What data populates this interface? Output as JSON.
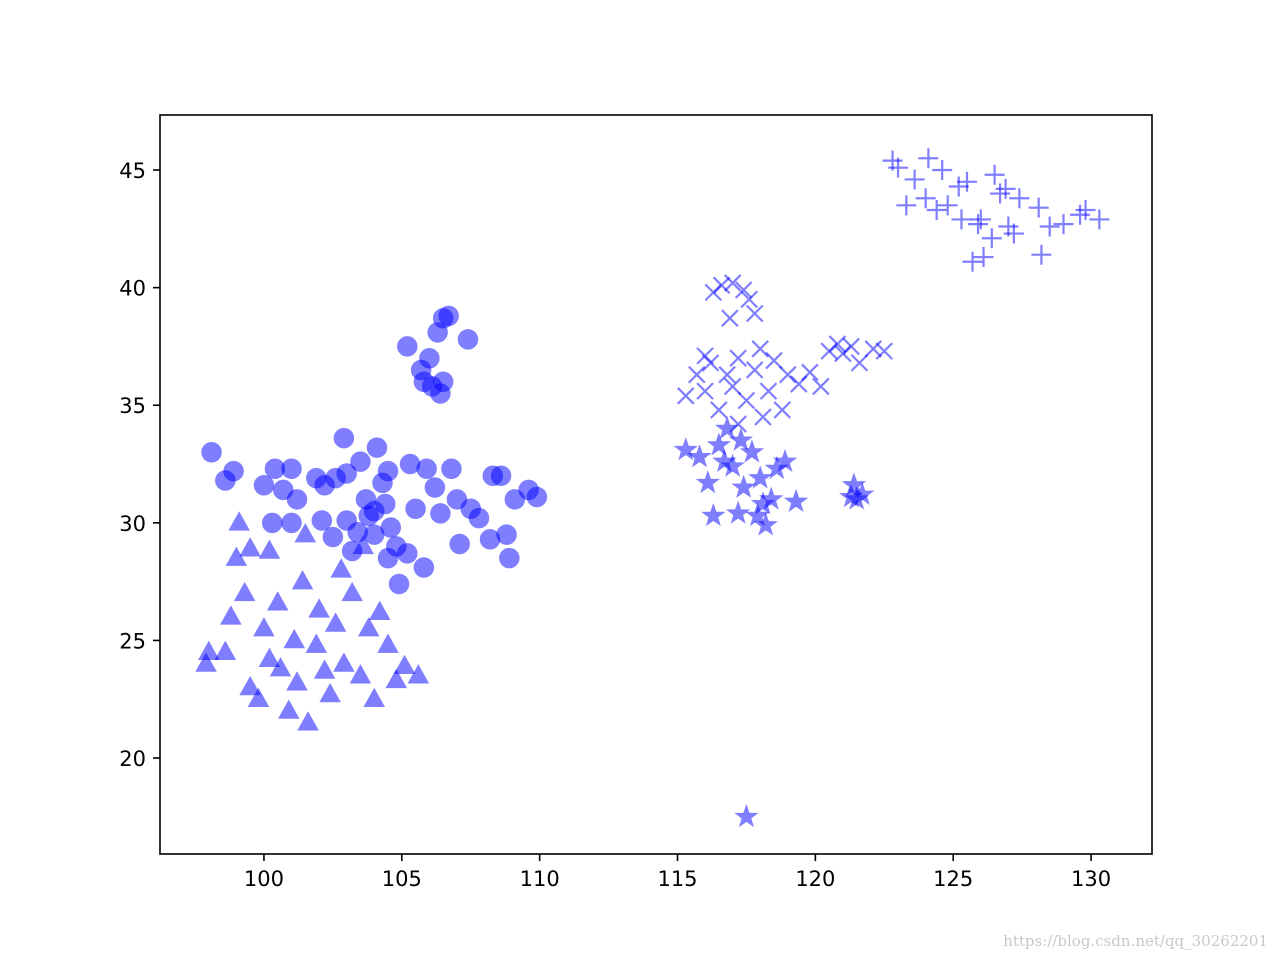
{
  "chart_data": {
    "type": "scatter",
    "xlim": [
      96.23,
      132.21
    ],
    "ylim": [
      15.92,
      47.34
    ],
    "xticks": [
      100,
      105,
      110,
      115,
      120,
      125,
      130
    ],
    "yticks": [
      20,
      25,
      30,
      35,
      40,
      45
    ],
    "alpha": 0.5,
    "watermark": "https://blog.csdn.net/qq_30262201",
    "series": [
      {
        "color": "#0000ff",
        "marker": "o",
        "x": [
          98.1,
          98.6,
          98.9,
          100,
          100.4,
          100.7,
          101,
          101.2,
          100.3,
          101,
          101.9,
          102.2,
          102.6,
          102.1,
          102.5,
          102.9,
          103,
          103,
          103.4,
          103.5,
          103.7,
          103.8,
          104,
          104.1,
          104.3,
          104.4,
          104.5,
          104.5,
          104.8,
          104.9,
          105.2,
          105.3,
          105.5,
          105.8,
          105.9,
          106.2,
          106.4,
          106.8,
          107,
          107.1,
          107.5,
          107.8,
          108.2,
          108.3,
          108.6,
          108.8,
          108.9,
          109.1,
          109.6,
          109.9,
          105.2,
          105.7,
          105.8,
          106,
          106.1,
          106.3,
          106.4,
          106.5,
          106.7,
          107.4,
          106.5,
          104,
          104.6,
          103.2
        ],
        "values": [
          33,
          31.8,
          32.2,
          31.6,
          32.3,
          31.4,
          32.3,
          31,
          30,
          30,
          31.9,
          31.6,
          31.9,
          30.1,
          29.4,
          33.6,
          32.1,
          30.1,
          29.6,
          32.6,
          31,
          30.3,
          29.5,
          33.2,
          31.7,
          30.8,
          32.2,
          28.5,
          29,
          27.4,
          28.7,
          32.5,
          30.6,
          28.1,
          32.3,
          31.5,
          30.4,
          32.3,
          31,
          29.1,
          30.6,
          30.2,
          29.3,
          32,
          32,
          29.5,
          28.5,
          31,
          31.4,
          31.1,
          37.5,
          36.5,
          36,
          37,
          35.8,
          38.1,
          35.5,
          38.7,
          38.8,
          37.8,
          36,
          30.5,
          29.8,
          28.8
        ]
      },
      {
        "color": "#0000ff",
        "marker": "^",
        "x": [
          97.9,
          98,
          98.6,
          98.8,
          99.1,
          99,
          99.3,
          99.5,
          99.8,
          100,
          100.2,
          100.5,
          100.9,
          101.1,
          101.2,
          101.4,
          101.6,
          101.9,
          102,
          102.4,
          102.6,
          102.9,
          103.2,
          103.5,
          103.8,
          104,
          104.2,
          104.5,
          104.8,
          105.1,
          105.6,
          101.5,
          102.8,
          103.6,
          99.5,
          100.2,
          102.2,
          100.6
        ],
        "values": [
          24,
          24.5,
          24.5,
          26,
          30,
          28.5,
          27,
          23,
          22.5,
          25.5,
          24.2,
          26.6,
          22,
          25,
          23.2,
          27.5,
          21.5,
          24.8,
          26.3,
          22.7,
          25.7,
          24,
          27,
          23.5,
          25.5,
          22.5,
          26.2,
          24.8,
          23.3,
          23.9,
          23.5,
          29.5,
          28,
          29,
          28.9,
          28.8,
          23.7,
          23.8
        ]
      },
      {
        "color": "#0000ff",
        "marker": "x",
        "x": [
          115.3,
          115.7,
          116,
          116.2,
          116.3,
          116.6,
          116.9,
          117,
          117.4,
          117.6,
          117.8,
          116.8,
          117,
          117.2,
          117.5,
          117.8,
          118,
          118.3,
          118.5,
          118.8,
          119,
          119.4,
          119.8,
          120.2,
          120.5,
          120.8,
          121,
          121.3,
          121.6,
          122.1,
          122.5,
          116.5,
          116,
          117.2,
          118.1
        ],
        "values": [
          35.4,
          36.3,
          35.6,
          36.8,
          39.8,
          40.1,
          38.7,
          40.2,
          39.9,
          39.5,
          38.9,
          36.3,
          35.8,
          37,
          35.2,
          36.5,
          37.4,
          35.6,
          36.9,
          34.8,
          36.3,
          35.9,
          36.4,
          35.8,
          37.3,
          37.6,
          37.2,
          37.5,
          36.8,
          37.4,
          37.3,
          34.8,
          37.1,
          34.2,
          34.5
        ]
      },
      {
        "color": "#0000ff",
        "marker": "*",
        "x": [
          115.3,
          115.8,
          116.1,
          116.3,
          116.5,
          116.8,
          117,
          117.2,
          117.4,
          117.5,
          117.7,
          117.9,
          118,
          118.2,
          118.4,
          118.6,
          118.9,
          119.3,
          121.3,
          121.4,
          121.5,
          121.7,
          116.7,
          117.3,
          118.1
        ],
        "values": [
          33.1,
          32.8,
          31.7,
          30.3,
          33.3,
          34,
          32.4,
          30.4,
          31.5,
          17.5,
          33,
          30.3,
          31.9,
          29.9,
          31,
          32.3,
          32.6,
          30.9,
          31.1,
          31.6,
          31,
          31.2,
          32.6,
          33.5,
          30.8
        ]
      },
      {
        "color": "#0000ff",
        "marker": "+",
        "x": [
          122.8,
          123,
          123.3,
          123.6,
          124,
          124.1,
          124.4,
          124.6,
          124.8,
          125.2,
          125.3,
          125.5,
          125.7,
          125.9,
          126.1,
          126.4,
          126.5,
          126.7,
          126.9,
          127,
          127.2,
          127.4,
          128.1,
          128.2,
          128.5,
          129,
          129.6,
          129.8,
          130.3,
          126
        ],
        "values": [
          45.4,
          45.1,
          43.5,
          44.6,
          43.8,
          45.5,
          43.3,
          45,
          43.5,
          44.3,
          42.9,
          44.5,
          41.1,
          42.7,
          41.3,
          42.1,
          44.8,
          44,
          44.2,
          42.6,
          42.3,
          43.8,
          43.4,
          41.4,
          42.6,
          42.7,
          43.1,
          43.3,
          42.9,
          42.9
        ]
      }
    ]
  }
}
